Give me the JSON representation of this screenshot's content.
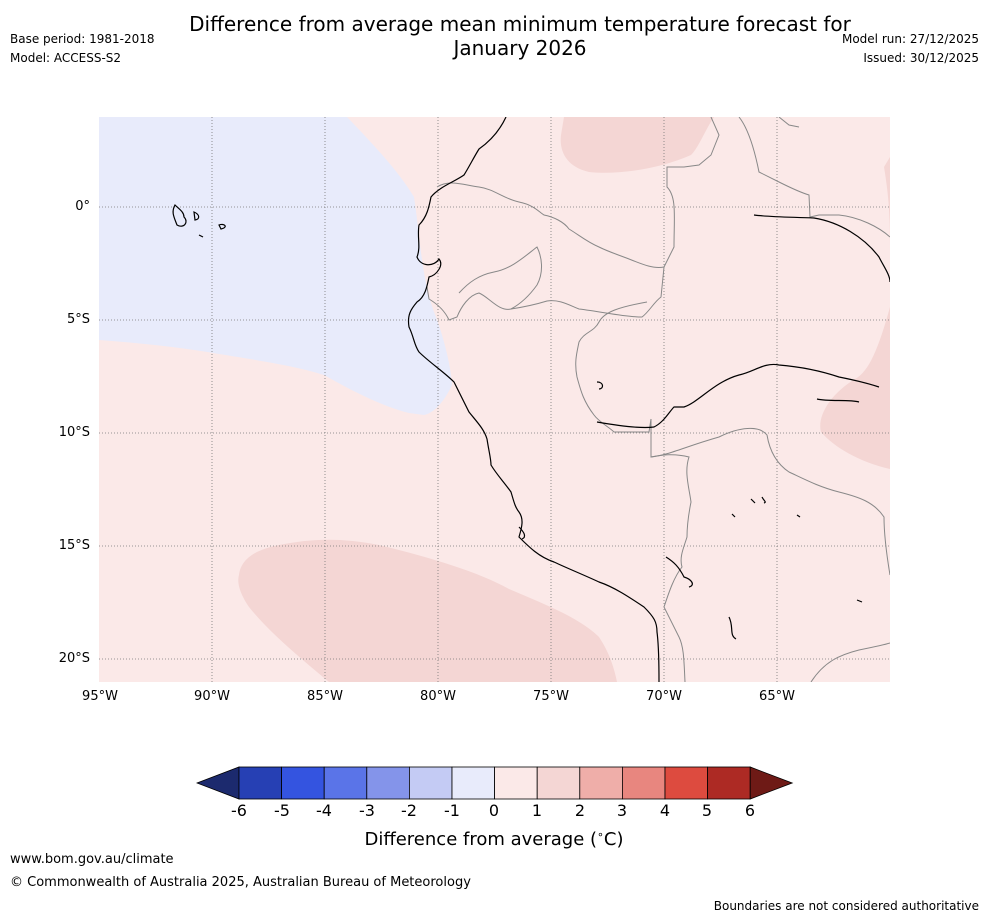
{
  "header": {
    "title_line1": "Difference from average mean minimum temperature forecast for",
    "title_line2": "January 2026",
    "base_period": "Base period: 1981-2018",
    "model": "Model: ACCESS-S2",
    "model_run": "Model run: 27/12/2025",
    "issued": "Issued: 30/12/2025"
  },
  "map": {
    "lat_labels": [
      "0°",
      "5°S",
      "10°S",
      "15°S",
      "20°S"
    ],
    "lon_labels": [
      "95°W",
      "90°W",
      "85°W",
      "80°W",
      "75°W",
      "70°W",
      "65°W"
    ],
    "anomaly_regions": [
      {
        "range": "-1 to 0",
        "area": "eastern Pacific Ocean off Ecuador, north of 7°S"
      },
      {
        "range": "0 to 1",
        "area": "most of the domain"
      },
      {
        "range": "1 to 2",
        "area": "Pacific Ocean off southern Peru, north-western Amazon (Colombia), south-western Brazil"
      }
    ]
  },
  "legend": {
    "ticks": [
      "-6",
      "-5",
      "-4",
      "-3",
      "-2",
      "-1",
      "0",
      "1",
      "2",
      "3",
      "4",
      "5",
      "6"
    ],
    "colors": [
      "#1c2a6e",
      "#2640b4",
      "#3454e0",
      "#5a74e8",
      "#8494ea",
      "#c4cbf4",
      "#e8ebfb",
      "#fbe9e8",
      "#f4d6d4",
      "#efaea9",
      "#e8867f",
      "#dd4b3f",
      "#ad2a24",
      "#6e1a16"
    ],
    "label": "Difference from average (",
    "label_unit": "C)",
    "degree_symbol": "∘"
  },
  "footer": {
    "website": "www.bom.gov.au/climate",
    "copyright": "© Commonwealth of Australia 2025, Australian Bureau of Meteorology",
    "disclaimer": "Boundaries are not considered authoritative"
  }
}
